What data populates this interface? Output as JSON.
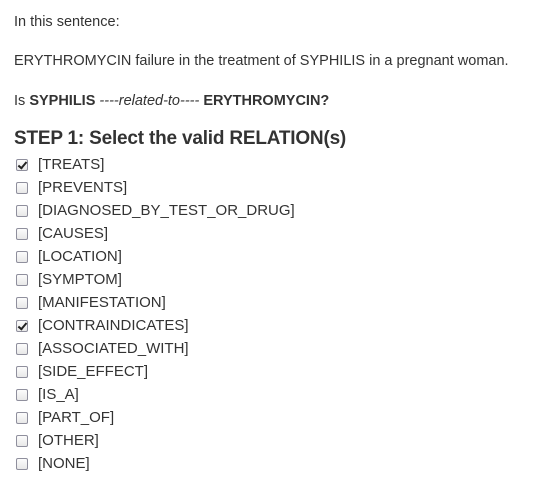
{
  "intro": "In this sentence:",
  "sentence": "ERYTHROMYCIN failure in the treatment of SYPHILIS in a pregnant woman.",
  "question": {
    "prefix": "Is",
    "entity1": "SYPHILIS",
    "relation": "----related-to----",
    "entity2": "ERYTHROMYCIN?"
  },
  "step_title": "STEP 1: Select the valid RELATION(s)",
  "options": [
    {
      "label": "[TREATS]",
      "checked": true
    },
    {
      "label": "[PREVENTS]",
      "checked": false
    },
    {
      "label": "[DIAGNOSED_BY_TEST_OR_DRUG]",
      "checked": false
    },
    {
      "label": "[CAUSES]",
      "checked": false
    },
    {
      "label": "[LOCATION]",
      "checked": false
    },
    {
      "label": "[SYMPTOM]",
      "checked": false
    },
    {
      "label": "[MANIFESTATION]",
      "checked": false
    },
    {
      "label": "[CONTRAINDICATES]",
      "checked": true
    },
    {
      "label": "[ASSOCIATED_WITH]",
      "checked": false
    },
    {
      "label": "[SIDE_EFFECT]",
      "checked": false
    },
    {
      "label": "[IS_A]",
      "checked": false
    },
    {
      "label": "[PART_OF]",
      "checked": false
    },
    {
      "label": "[OTHER]",
      "checked": false
    },
    {
      "label": "[NONE]",
      "checked": false
    }
  ]
}
